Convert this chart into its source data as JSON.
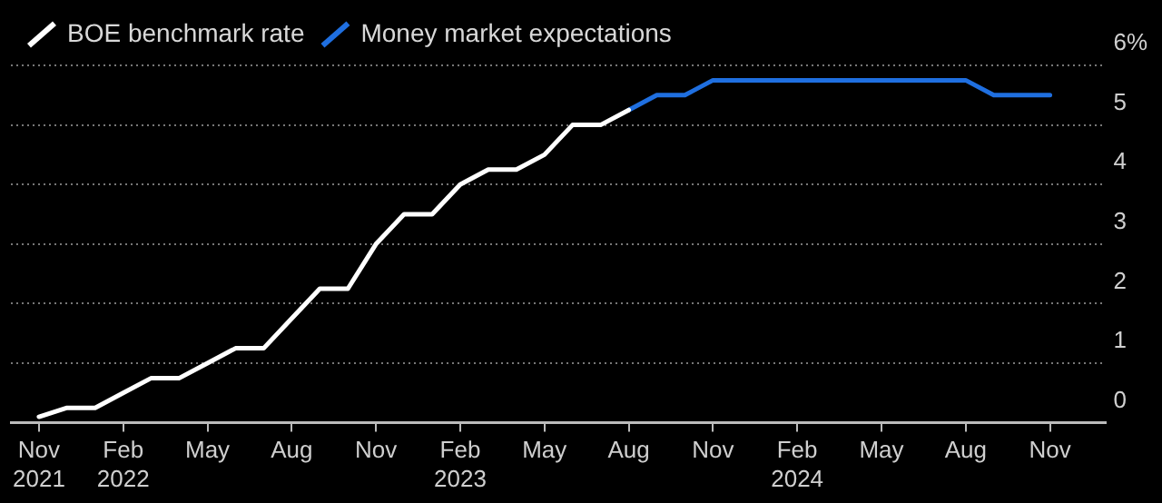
{
  "chart_data": {
    "type": "line",
    "series": [
      {
        "name": "BOE benchmark rate",
        "color": "#ffffff",
        "x": [
          "2021-11",
          "2021-12",
          "2022-01",
          "2022-02",
          "2022-03",
          "2022-04",
          "2022-05",
          "2022-06",
          "2022-07",
          "2022-08",
          "2022-09",
          "2022-10",
          "2022-11",
          "2022-12",
          "2023-01",
          "2023-02",
          "2023-03",
          "2023-04",
          "2023-05",
          "2023-06",
          "2023-07",
          "2023-08"
        ],
        "values": [
          0.1,
          0.25,
          0.25,
          0.5,
          0.75,
          0.75,
          1.0,
          1.25,
          1.25,
          1.75,
          2.25,
          2.25,
          3.0,
          3.5,
          3.5,
          4.0,
          4.25,
          4.25,
          4.5,
          5.0,
          5.0,
          5.25
        ]
      },
      {
        "name": "Money market expectations",
        "color": "#1f6fe0",
        "x": [
          "2023-08",
          "2023-09",
          "2023-10",
          "2023-11",
          "2023-12",
          "2024-01",
          "2024-02",
          "2024-03",
          "2024-04",
          "2024-05",
          "2024-06",
          "2024-07",
          "2024-08",
          "2024-09",
          "2024-10",
          "2024-11"
        ],
        "values": [
          5.25,
          5.5,
          5.5,
          5.75,
          5.75,
          5.75,
          5.75,
          5.75,
          5.75,
          5.75,
          5.75,
          5.75,
          5.75,
          5.5,
          5.5,
          5.5
        ]
      }
    ],
    "xlim": [
      "2021-10",
      "2025-01"
    ],
    "xticks": [
      {
        "value": "2021-11",
        "label": "Nov 2021"
      },
      {
        "value": "2022-02",
        "label": "Feb 2022"
      },
      {
        "value": "2022-05",
        "label": "May"
      },
      {
        "value": "2022-08",
        "label": "Aug"
      },
      {
        "value": "2022-11",
        "label": "Nov"
      },
      {
        "value": "2023-02",
        "label": "Feb 2023"
      },
      {
        "value": "2023-05",
        "label": "May"
      },
      {
        "value": "2023-08",
        "label": "Aug"
      },
      {
        "value": "2023-11",
        "label": "Nov"
      },
      {
        "value": "2024-02",
        "label": "Feb 2024"
      },
      {
        "value": "2024-05",
        "label": "May"
      },
      {
        "value": "2024-08",
        "label": "Aug"
      },
      {
        "value": "2024-11",
        "label": "Nov"
      }
    ],
    "ylim": [
      0,
      6
    ],
    "yticks": [
      0,
      1,
      2,
      3,
      4,
      5,
      {
        "value": 6,
        "label": "6%"
      }
    ],
    "grid": "y",
    "legend": "top left",
    "marker": "none",
    "line_style": "solid"
  }
}
